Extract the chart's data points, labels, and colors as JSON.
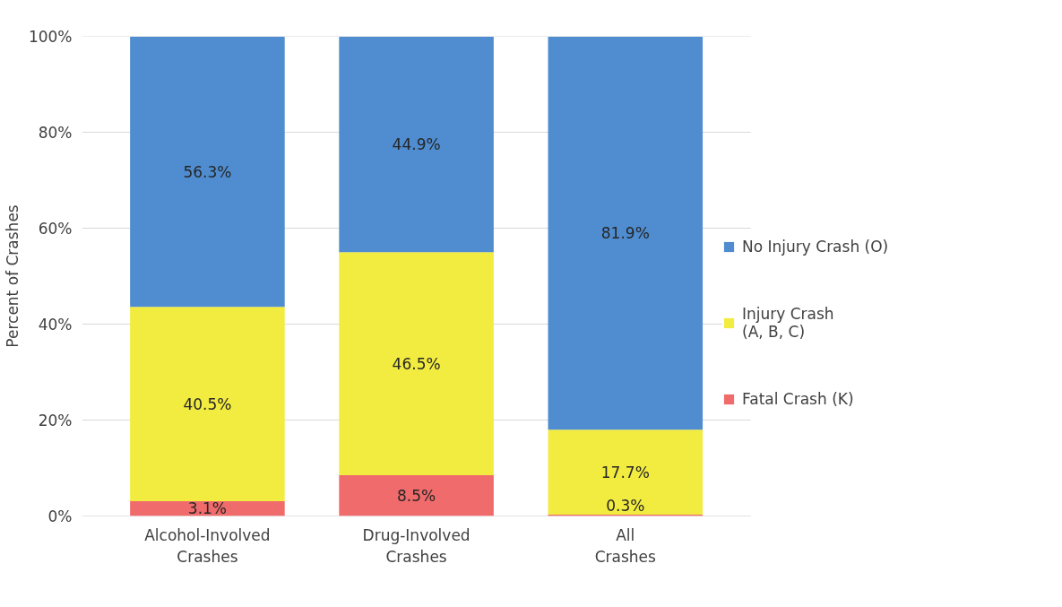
{
  "chart_data": {
    "type": "bar",
    "stacked": true,
    "ylabel": "Percent of Crashes",
    "categories": [
      "Alcohol-Involved Crashes",
      "Drug-Involved Crashes",
      "All Crashes"
    ],
    "series": [
      {
        "name": "Fatal Crash (K)",
        "color": "#f06b6b",
        "values": [
          3.1,
          8.5,
          0.3
        ],
        "value_labels": [
          "3.1%",
          "8.5%",
          "0.3%"
        ]
      },
      {
        "name": "Injury Crash\n(A, B, C)",
        "color": "#f2ec40",
        "values": [
          40.5,
          46.5,
          17.7
        ],
        "value_labels": [
          "40.5%",
          "46.5%",
          "17.7%"
        ]
      },
      {
        "name": "No Injury Crash (O)",
        "color": "#4f8dd0",
        "values": [
          56.3,
          44.9,
          81.9
        ],
        "value_labels": [
          "56.3%",
          "44.9%",
          "81.9%"
        ]
      }
    ],
    "ylim": [
      0,
      100
    ],
    "yticks": [
      {
        "value": 0,
        "label": "0%"
      },
      {
        "value": 20,
        "label": "20%"
      },
      {
        "value": 40,
        "label": "40%"
      },
      {
        "value": 60,
        "label": "60%"
      },
      {
        "value": 80,
        "label": "80%"
      },
      {
        "value": 100,
        "label": "100%"
      }
    ],
    "grid": "y",
    "legend": "right"
  }
}
